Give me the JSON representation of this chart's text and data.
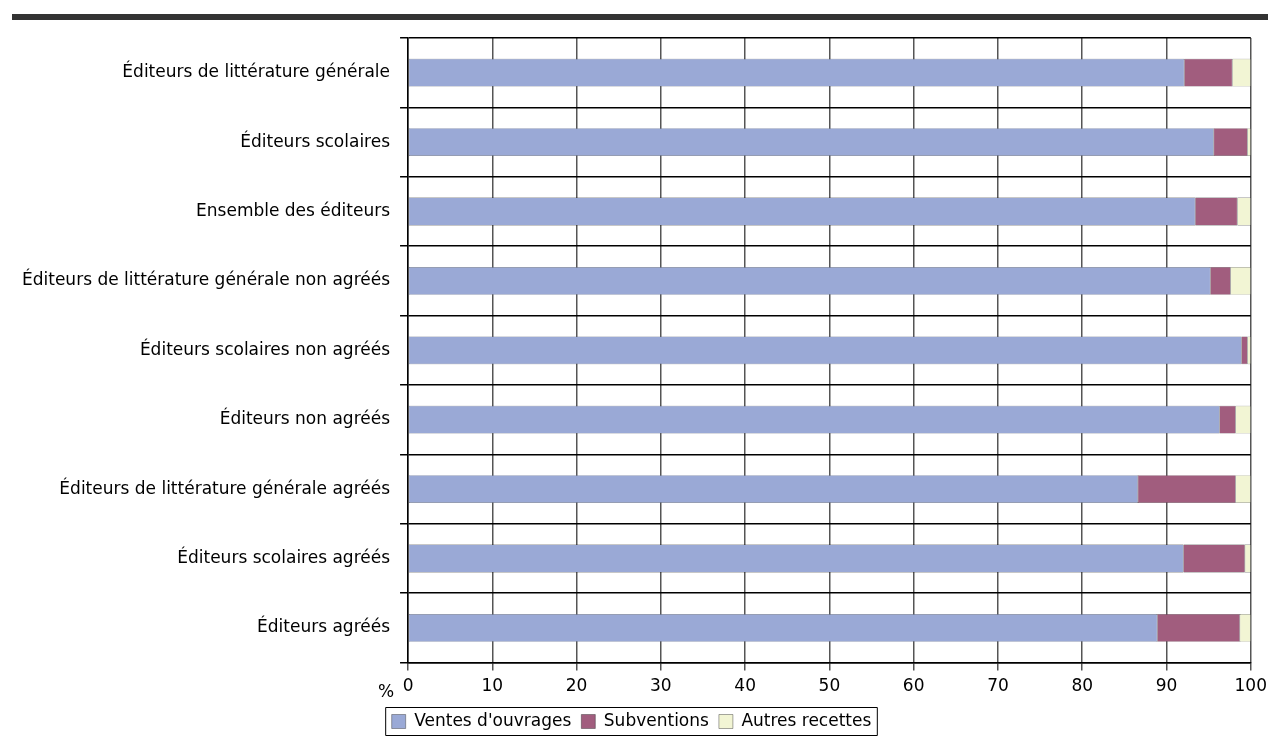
{
  "chart_data": {
    "type": "bar",
    "orientation": "horizontal",
    "stacked": true,
    "xlabel": "%",
    "categories": [
      "Éditeurs de littérature générale",
      "Éditeurs scolaires",
      "Ensemble des éditeurs",
      "Éditeurs de littérature générale non agréés",
      "Éditeurs scolaires non agréés",
      "Éditeurs non agréés",
      "Éditeurs de littérature générale agréés",
      "Éditeurs scolaires agréés",
      "Éditeurs agréés"
    ],
    "series": [
      {
        "name": "Ventes d'ouvrages",
        "color": "#9aa9d6",
        "values": [
          92.1,
          95.6,
          93.4,
          95.2,
          98.9,
          96.3,
          86.6,
          92.0,
          88.9
        ]
      },
      {
        "name": "Subventions",
        "color": "#a15d7e",
        "values": [
          5.7,
          4.0,
          5.0,
          2.4,
          0.7,
          1.9,
          11.6,
          7.3,
          9.8
        ]
      },
      {
        "name": "Autres recettes",
        "color": "#f2f5d4",
        "values": [
          2.2,
          0.4,
          1.6,
          2.4,
          0.4,
          1.8,
          1.8,
          0.7,
          1.3
        ]
      }
    ],
    "xlim": [
      0,
      100
    ],
    "xticks": [
      0,
      10,
      20,
      30,
      40,
      50,
      60,
      70,
      80,
      90,
      100
    ],
    "grid": true,
    "legend": "bottom"
  }
}
